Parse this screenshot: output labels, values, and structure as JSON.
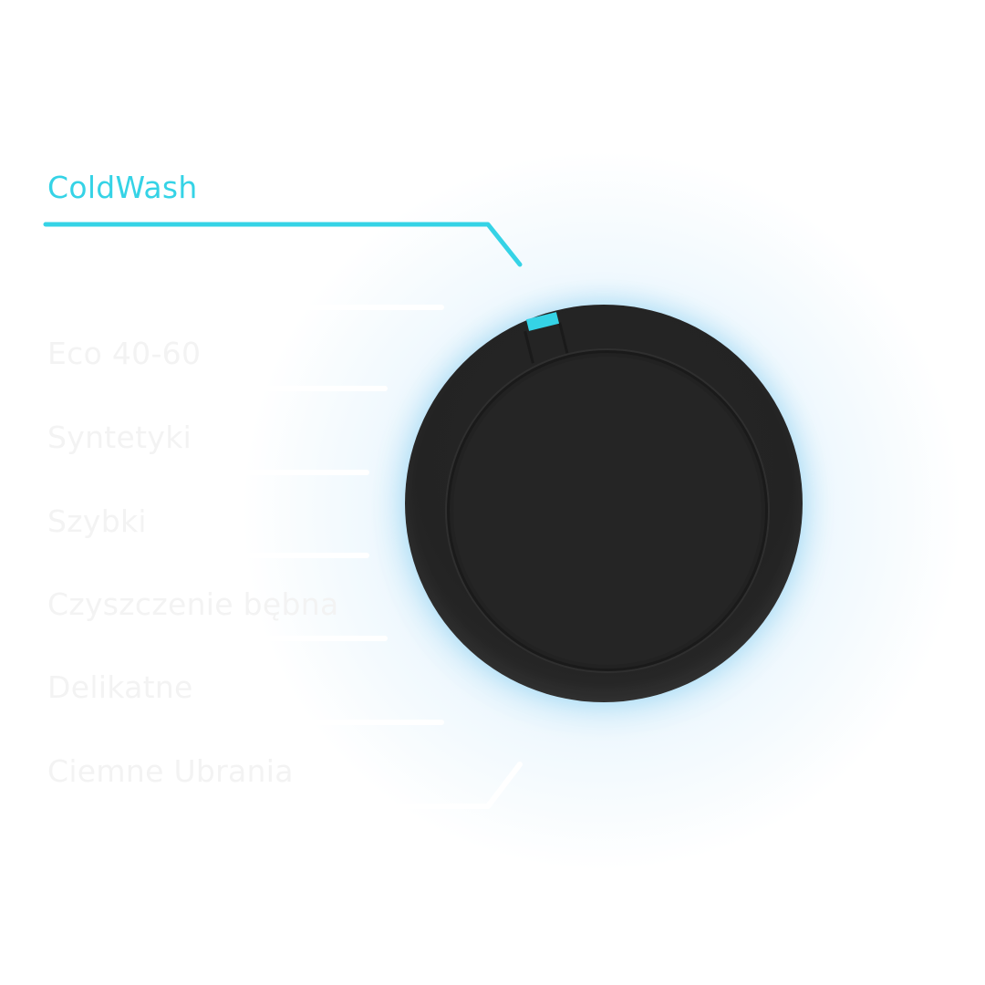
{
  "program_selector": {
    "selected": "ColdWash",
    "options": [
      {
        "label": "ColdWash",
        "active": true
      },
      {
        "label": "Eco 40-60",
        "active": false
      },
      {
        "label": "Syntetyki",
        "active": false
      },
      {
        "label": "Szybki",
        "active": false
      },
      {
        "label": "Czyszczenie bębna",
        "active": false
      },
      {
        "label": "Delikatne",
        "active": false
      },
      {
        "label": "Ciemne Ubrania",
        "active": false
      }
    ]
  },
  "colors": {
    "accent": "#35d3e6",
    "knob": "#252525",
    "inactive_text": "#f3f3f3"
  }
}
